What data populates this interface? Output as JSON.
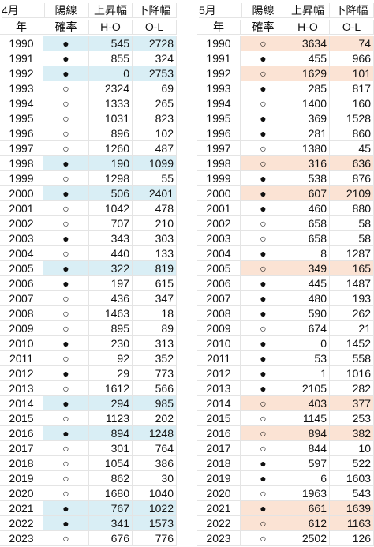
{
  "tables": [
    {
      "title": "4月",
      "year_header": "年",
      "col_headers": [
        [
          "陽線",
          "確率"
        ],
        [
          "上昇幅",
          "H-O"
        ],
        [
          "下降幅",
          "O-L"
        ]
      ],
      "highlight_color": "#d9eef5",
      "rows": [
        {
          "year": "1990",
          "mark": "●",
          "ho": 545,
          "ol": 2728,
          "highlight": true
        },
        {
          "year": "1991",
          "mark": "●",
          "ho": 855,
          "ol": 324,
          "highlight": false
        },
        {
          "year": "1992",
          "mark": "●",
          "ho": 0,
          "ol": 2753,
          "highlight": true
        },
        {
          "year": "1993",
          "mark": "○",
          "ho": 2324,
          "ol": 69,
          "highlight": false
        },
        {
          "year": "1994",
          "mark": "○",
          "ho": 1333,
          "ol": 265,
          "highlight": false
        },
        {
          "year": "1995",
          "mark": "○",
          "ho": 1031,
          "ol": 823,
          "highlight": false
        },
        {
          "year": "1996",
          "mark": "○",
          "ho": 896,
          "ol": 102,
          "highlight": false
        },
        {
          "year": "1997",
          "mark": "○",
          "ho": 1260,
          "ol": 487,
          "highlight": false
        },
        {
          "year": "1998",
          "mark": "●",
          "ho": 190,
          "ol": 1099,
          "highlight": true
        },
        {
          "year": "1999",
          "mark": "○",
          "ho": 1298,
          "ol": 55,
          "highlight": false
        },
        {
          "year": "2000",
          "mark": "●",
          "ho": 506,
          "ol": 2401,
          "highlight": true
        },
        {
          "year": "2001",
          "mark": "○",
          "ho": 1042,
          "ol": 478,
          "highlight": false
        },
        {
          "year": "2002",
          "mark": "○",
          "ho": 707,
          "ol": 210,
          "highlight": false
        },
        {
          "year": "2003",
          "mark": "●",
          "ho": 343,
          "ol": 303,
          "highlight": false
        },
        {
          "year": "2004",
          "mark": "○",
          "ho": 440,
          "ol": 133,
          "highlight": false
        },
        {
          "year": "2005",
          "mark": "●",
          "ho": 322,
          "ol": 819,
          "highlight": true
        },
        {
          "year": "2006",
          "mark": "●",
          "ho": 197,
          "ol": 615,
          "highlight": false
        },
        {
          "year": "2007",
          "mark": "○",
          "ho": 436,
          "ol": 347,
          "highlight": false
        },
        {
          "year": "2008",
          "mark": "○",
          "ho": 1463,
          "ol": 18,
          "highlight": false
        },
        {
          "year": "2009",
          "mark": "○",
          "ho": 895,
          "ol": 89,
          "highlight": false
        },
        {
          "year": "2010",
          "mark": "●",
          "ho": 230,
          "ol": 313,
          "highlight": false
        },
        {
          "year": "2011",
          "mark": "○",
          "ho": 92,
          "ol": 352,
          "highlight": false
        },
        {
          "year": "2012",
          "mark": "●",
          "ho": 29,
          "ol": 773,
          "highlight": false
        },
        {
          "year": "2013",
          "mark": "○",
          "ho": 1612,
          "ol": 566,
          "highlight": false
        },
        {
          "year": "2014",
          "mark": "●",
          "ho": 294,
          "ol": 985,
          "highlight": true
        },
        {
          "year": "2015",
          "mark": "○",
          "ho": 1123,
          "ol": 202,
          "highlight": false
        },
        {
          "year": "2016",
          "mark": "●",
          "ho": 894,
          "ol": 1248,
          "highlight": true
        },
        {
          "year": "2017",
          "mark": "○",
          "ho": 301,
          "ol": 764,
          "highlight": false
        },
        {
          "year": "2018",
          "mark": "○",
          "ho": 1054,
          "ol": 386,
          "highlight": false
        },
        {
          "year": "2019",
          "mark": "○",
          "ho": 862,
          "ol": 30,
          "highlight": false
        },
        {
          "year": "2020",
          "mark": "○",
          "ho": 1680,
          "ol": 1040,
          "highlight": false
        },
        {
          "year": "2021",
          "mark": "●",
          "ho": 767,
          "ol": 1022,
          "highlight": true
        },
        {
          "year": "2022",
          "mark": "●",
          "ho": 341,
          "ol": 1573,
          "highlight": true
        },
        {
          "year": "2023",
          "mark": "○",
          "ho": 676,
          "ol": 776,
          "highlight": false
        }
      ]
    },
    {
      "title": "5月",
      "year_header": "年",
      "col_headers": [
        [
          "陽線",
          "確率"
        ],
        [
          "上昇幅",
          "H-O"
        ],
        [
          "下降幅",
          "O-L"
        ]
      ],
      "highlight_color": "#fbe3d4",
      "rows": [
        {
          "year": "1990",
          "mark": "○",
          "ho": 3634,
          "ol": 74,
          "highlight": true
        },
        {
          "year": "1991",
          "mark": "●",
          "ho": 455,
          "ol": 966,
          "highlight": false
        },
        {
          "year": "1992",
          "mark": "○",
          "ho": 1629,
          "ol": 101,
          "highlight": true
        },
        {
          "year": "1993",
          "mark": "●",
          "ho": 285,
          "ol": 817,
          "highlight": false
        },
        {
          "year": "1994",
          "mark": "○",
          "ho": 1400,
          "ol": 160,
          "highlight": false
        },
        {
          "year": "1995",
          "mark": "●",
          "ho": 369,
          "ol": 1528,
          "highlight": false
        },
        {
          "year": "1996",
          "mark": "●",
          "ho": 281,
          "ol": 860,
          "highlight": false
        },
        {
          "year": "1997",
          "mark": "○",
          "ho": 1380,
          "ol": 45,
          "highlight": false
        },
        {
          "year": "1998",
          "mark": "○",
          "ho": 316,
          "ol": 636,
          "highlight": true
        },
        {
          "year": "1999",
          "mark": "●",
          "ho": 538,
          "ol": 876,
          "highlight": false
        },
        {
          "year": "2000",
          "mark": "●",
          "ho": 607,
          "ol": 2109,
          "highlight": true
        },
        {
          "year": "2001",
          "mark": "●",
          "ho": 460,
          "ol": 880,
          "highlight": false
        },
        {
          "year": "2002",
          "mark": "○",
          "ho": 658,
          "ol": 58,
          "highlight": false
        },
        {
          "year": "2003",
          "mark": "○",
          "ho": 658,
          "ol": 58,
          "highlight": false
        },
        {
          "year": "2004",
          "mark": "●",
          "ho": 8,
          "ol": 1287,
          "highlight": false
        },
        {
          "year": "2005",
          "mark": "○",
          "ho": 349,
          "ol": 165,
          "highlight": true
        },
        {
          "year": "2006",
          "mark": "●",
          "ho": 445,
          "ol": 1487,
          "highlight": false
        },
        {
          "year": "2007",
          "mark": "●",
          "ho": 480,
          "ol": 193,
          "highlight": false
        },
        {
          "year": "2008",
          "mark": "●",
          "ho": 590,
          "ol": 262,
          "highlight": false
        },
        {
          "year": "2009",
          "mark": "○",
          "ho": 674,
          "ol": 21,
          "highlight": false
        },
        {
          "year": "2010",
          "mark": "●",
          "ho": 0,
          "ol": 1452,
          "highlight": false
        },
        {
          "year": "2011",
          "mark": "●",
          "ho": 53,
          "ol": 558,
          "highlight": false
        },
        {
          "year": "2012",
          "mark": "●",
          "ho": 1,
          "ol": 1016,
          "highlight": false
        },
        {
          "year": "2013",
          "mark": "●",
          "ho": 2105,
          "ol": 282,
          "highlight": false
        },
        {
          "year": "2014",
          "mark": "○",
          "ho": 403,
          "ol": 377,
          "highlight": true
        },
        {
          "year": "2015",
          "mark": "○",
          "ho": 1145,
          "ol": 253,
          "highlight": false
        },
        {
          "year": "2016",
          "mark": "○",
          "ho": 894,
          "ol": 382,
          "highlight": true
        },
        {
          "year": "2017",
          "mark": "○",
          "ho": 844,
          "ol": 10,
          "highlight": false
        },
        {
          "year": "2018",
          "mark": "●",
          "ho": 597,
          "ol": 522,
          "highlight": false
        },
        {
          "year": "2019",
          "mark": "●",
          "ho": 6,
          "ol": 1603,
          "highlight": false
        },
        {
          "year": "2020",
          "mark": "○",
          "ho": 1963,
          "ol": 543,
          "highlight": false
        },
        {
          "year": "2021",
          "mark": "●",
          "ho": 661,
          "ol": 1639,
          "highlight": true
        },
        {
          "year": "2022",
          "mark": "○",
          "ho": 612,
          "ol": 1163,
          "highlight": true
        },
        {
          "year": "2023",
          "mark": "○",
          "ho": 2502,
          "ol": 126,
          "highlight": false
        }
      ]
    }
  ]
}
